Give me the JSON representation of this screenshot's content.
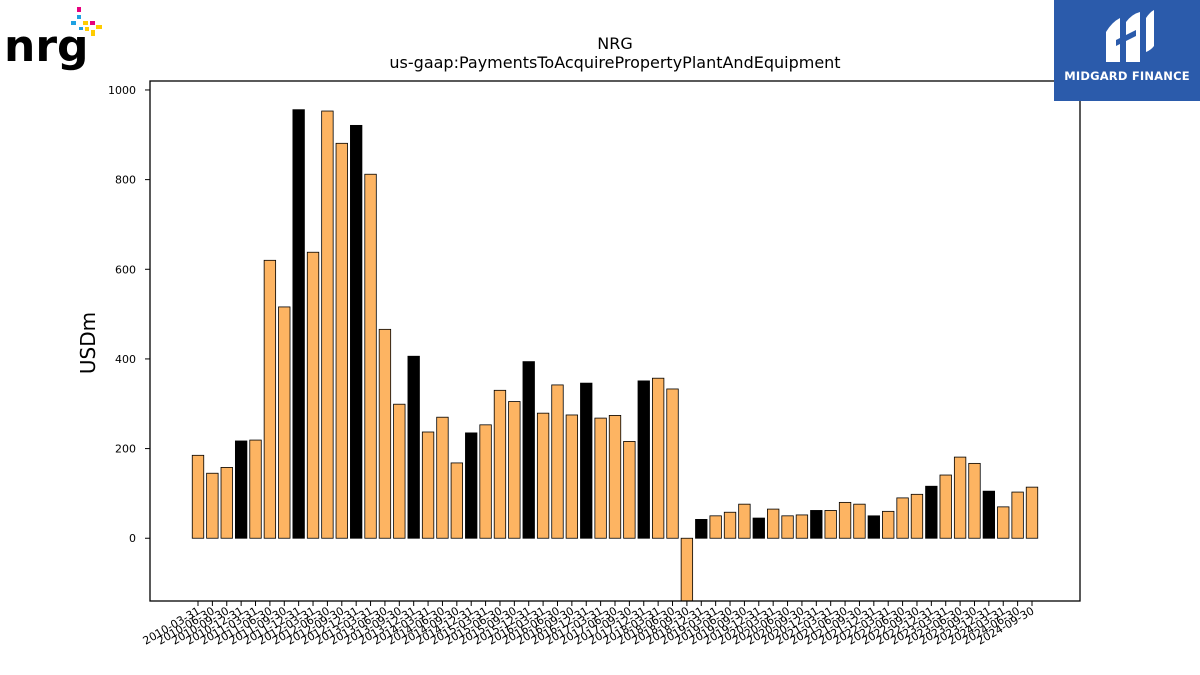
{
  "logos": {
    "left": {
      "text": "nrg",
      "mark": "®"
    },
    "right": {
      "text": "MIDGARD FINANCE"
    }
  },
  "colors": {
    "orange": "#fdb462",
    "black": "#000000",
    "frame": "#000000",
    "midgard_bg": "#2b5bab"
  },
  "chart_data": {
    "type": "bar",
    "title": "NRG",
    "subtitle": "us-gaap:PaymentsToAcquirePropertyPlantAndEquipment",
    "xlabel": "",
    "ylabel": "USDm",
    "ylim": [
      -140,
      1020
    ],
    "yticks": [
      0,
      200,
      400,
      600,
      800,
      1000
    ],
    "grid": false,
    "legend": "none",
    "categories": [
      "2010-03-31",
      "2010-06-30",
      "2010-09-30",
      "2010-12-31",
      "2011-03-31",
      "2011-06-30",
      "2011-09-30",
      "2011-12-31",
      "2012-03-31",
      "2012-06-30",
      "2012-09-30",
      "2012-12-31",
      "2013-03-31",
      "2013-06-30",
      "2013-09-30",
      "2013-12-31",
      "2014-03-31",
      "2014-06-30",
      "2014-09-30",
      "2014-12-31",
      "2015-03-31",
      "2015-06-30",
      "2015-09-30",
      "2015-12-31",
      "2016-03-31",
      "2016-06-30",
      "2016-09-30",
      "2016-12-31",
      "2017-03-31",
      "2017-06-30",
      "2017-09-30",
      "2017-12-31",
      "2018-03-31",
      "2018-06-30",
      "2018-09-30",
      "2018-12-31",
      "2019-03-31",
      "2019-06-30",
      "2019-09-30",
      "2019-12-31",
      "2020-03-31",
      "2020-06-30",
      "2020-09-30",
      "2020-12-31",
      "2021-03-31",
      "2021-06-30",
      "2021-09-30",
      "2021-12-31",
      "2022-03-31",
      "2022-06-30",
      "2022-09-30",
      "2022-12-31",
      "2023-03-31",
      "2023-06-30",
      "2023-09-30",
      "2023-12-31",
      "2024-03-31",
      "2024-06-30",
      "2024-09-30"
    ],
    "values": [
      185,
      145,
      158,
      217,
      219,
      620,
      516,
      956,
      638,
      953,
      881,
      921,
      812,
      466,
      299,
      406,
      237,
      270,
      168,
      235,
      253,
      330,
      305,
      394,
      279,
      342,
      275,
      346,
      268,
      274,
      216,
      351,
      357,
      333,
      -145,
      42,
      50,
      58,
      76,
      45,
      65,
      50,
      52,
      62,
      62,
      80,
      76,
      50,
      60,
      90,
      98,
      116,
      141,
      181,
      167,
      105,
      70,
      103,
      114
    ],
    "bar_colors": [
      "orange",
      "orange",
      "orange",
      "black",
      "orange",
      "orange",
      "orange",
      "black",
      "orange",
      "orange",
      "orange",
      "black",
      "orange",
      "orange",
      "orange",
      "black",
      "orange",
      "orange",
      "orange",
      "black",
      "orange",
      "orange",
      "orange",
      "black",
      "orange",
      "orange",
      "orange",
      "black",
      "orange",
      "orange",
      "orange",
      "black",
      "orange",
      "orange",
      "orange",
      "black",
      "orange",
      "orange",
      "orange",
      "black",
      "orange",
      "orange",
      "orange",
      "black",
      "orange",
      "orange",
      "orange",
      "black",
      "orange",
      "orange",
      "orange",
      "black",
      "orange",
      "orange",
      "orange",
      "black",
      "orange",
      "orange",
      "orange"
    ]
  }
}
